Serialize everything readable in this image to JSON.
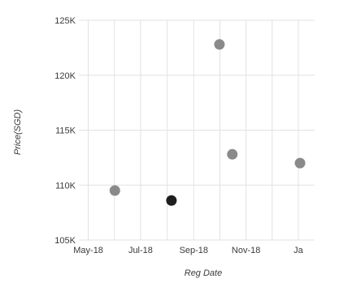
{
  "chart_data": {
    "type": "scatter",
    "title": "",
    "xlabel": "Reg Date",
    "ylabel": "Price(SGD)",
    "x_type": "date",
    "xlim": [
      "2018-04-20",
      "2019-01-20"
    ],
    "ylim": [
      105000,
      125000
    ],
    "x_ticks": [
      {
        "value": "2018-05-01",
        "label": "May-18"
      },
      {
        "value": "2018-07-01",
        "label": "Jul-18"
      },
      {
        "value": "2018-09-01",
        "label": "Sep-18"
      },
      {
        "value": "2018-11-01",
        "label": "Nov-18"
      },
      {
        "value": "2019-01-01",
        "label": "Ja"
      }
    ],
    "y_ticks": [
      {
        "value": 105000,
        "label": "105K"
      },
      {
        "value": 110000,
        "label": "110K"
      },
      {
        "value": 115000,
        "label": "115K"
      },
      {
        "value": 120000,
        "label": "120K"
      },
      {
        "value": 125000,
        "label": "125K"
      }
    ],
    "grid": true,
    "points": [
      {
        "x": "2018-06-01",
        "y": 109500,
        "color": "#8a8a8a"
      },
      {
        "x": "2018-08-06",
        "y": 108600,
        "color": "#1e1e1e"
      },
      {
        "x": "2018-10-01",
        "y": 122800,
        "color": "#8a8a8a"
      },
      {
        "x": "2018-10-16",
        "y": 112800,
        "color": "#8a8a8a"
      },
      {
        "x": "2019-01-03",
        "y": 112000,
        "color": "#8a8a8a"
      }
    ]
  }
}
